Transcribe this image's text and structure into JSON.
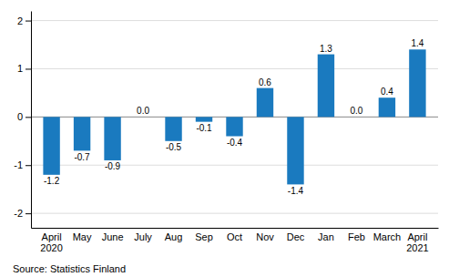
{
  "chart_data": {
    "type": "bar",
    "categories": [
      "April\n2020",
      "May",
      "June",
      "July",
      "Aug",
      "Sep",
      "Oct",
      "Nov",
      "Dec",
      "Jan",
      "Feb",
      "March",
      "April\n2021"
    ],
    "values": [
      -1.2,
      -0.7,
      -0.9,
      0.0,
      -0.5,
      -0.1,
      -0.4,
      0.6,
      -1.4,
      1.3,
      0.0,
      0.4,
      1.4
    ],
    "value_labels": [
      "-1.2",
      "-0.7",
      "-0.9",
      "0.0",
      "-0.5",
      "-0.1",
      "-0.4",
      "0.6",
      "-1.4",
      "1.3",
      "0.0",
      "0.4",
      "1.4"
    ],
    "data_labels": true,
    "color": "#1a7abf",
    "ylim": [
      -2.3,
      2.2
    ],
    "yticks": [
      -2,
      -1,
      0,
      1,
      2
    ],
    "grid": true,
    "annotations": [
      "Source: Statistics Finland"
    ]
  }
}
